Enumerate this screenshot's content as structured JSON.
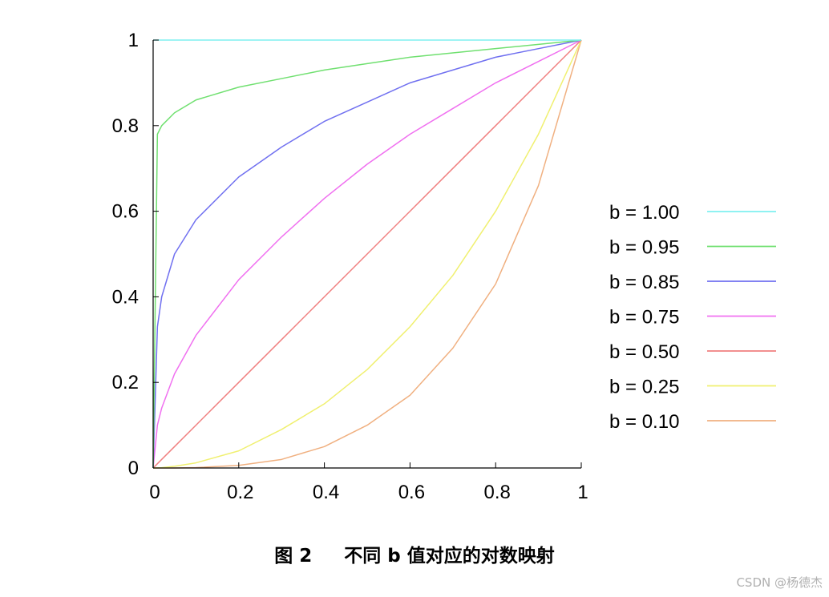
{
  "chart_data": {
    "type": "line",
    "xlim": [
      0,
      1
    ],
    "ylim": [
      0,
      1
    ],
    "x_ticks": [
      "0",
      "0.2",
      "0.4",
      "0.6",
      "0.8",
      "1"
    ],
    "y_ticks": [
      "0",
      "0.2",
      "0.4",
      "0.6",
      "0.8",
      "1"
    ],
    "x_tick_values": [
      0,
      0.2,
      0.4,
      0.6,
      0.8,
      1
    ],
    "y_tick_values": [
      0,
      0.2,
      0.4,
      0.6,
      0.8,
      1
    ],
    "grid": false,
    "legend_position": "right",
    "x": [
      0,
      0.01,
      0.02,
      0.05,
      0.1,
      0.2,
      0.3,
      0.4,
      0.5,
      0.6,
      0.7,
      0.8,
      0.9,
      1.0
    ],
    "series": [
      {
        "name": "b = 1.00",
        "color": "#7ff0f0",
        "values": [
          1,
          1,
          1,
          1,
          1,
          1,
          1,
          1,
          1,
          1,
          1,
          1,
          1,
          1
        ]
      },
      {
        "name": "b = 0.95",
        "color": "#70e070",
        "values": [
          0,
          0.78,
          0.8,
          0.83,
          0.86,
          0.89,
          0.91,
          0.93,
          0.945,
          0.96,
          0.97,
          0.98,
          0.99,
          1.0
        ]
      },
      {
        "name": "b = 0.85",
        "color": "#7070f0",
        "values": [
          0,
          0.33,
          0.4,
          0.5,
          0.58,
          0.68,
          0.75,
          0.81,
          0.855,
          0.9,
          0.93,
          0.96,
          0.98,
          1.0
        ]
      },
      {
        "name": "b = 0.75",
        "color": "#f070f0",
        "values": [
          0,
          0.1,
          0.14,
          0.22,
          0.31,
          0.44,
          0.54,
          0.63,
          0.71,
          0.78,
          0.84,
          0.9,
          0.95,
          1.0
        ]
      },
      {
        "name": "b = 0.50",
        "color": "#f08080",
        "values": [
          0,
          0.01,
          0.02,
          0.05,
          0.1,
          0.2,
          0.3,
          0.4,
          0.5,
          0.6,
          0.7,
          0.8,
          0.9,
          1.0
        ]
      },
      {
        "name": "b = 0.25",
        "color": "#f0f070",
        "values": [
          0,
          0.0003,
          0.0008,
          0.004,
          0.012,
          0.04,
          0.09,
          0.15,
          0.23,
          0.33,
          0.45,
          0.6,
          0.78,
          1.0
        ]
      },
      {
        "name": "b = 0.10",
        "color": "#f0b080",
        "values": [
          0,
          0,
          0,
          0,
          0.001,
          0.006,
          0.02,
          0.05,
          0.1,
          0.17,
          0.28,
          0.43,
          0.66,
          1.0
        ]
      }
    ]
  },
  "caption": "图 2     不同 b 值对应的对数映射",
  "watermark": "CSDN @杨德杰"
}
